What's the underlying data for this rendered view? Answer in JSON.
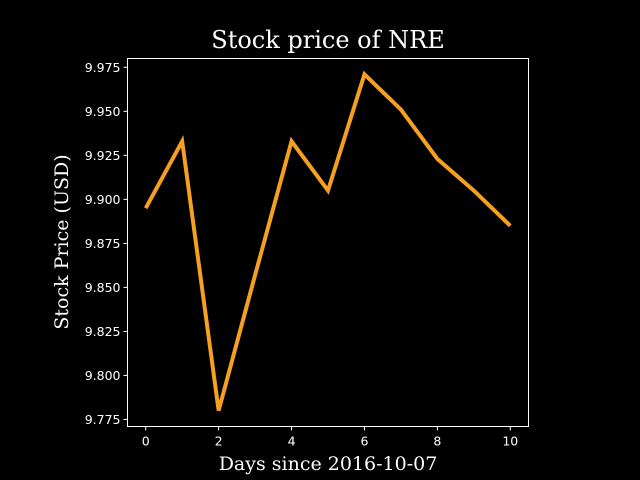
{
  "chart_data": {
    "type": "line",
    "title": "Stock price of NRE",
    "xlabel": "Days since 2016-10-07",
    "ylabel": "Stock Price (USD)",
    "x": [
      0,
      1,
      2,
      3,
      4,
      5,
      6,
      7,
      8,
      9,
      10
    ],
    "series": [
      {
        "values": [
          9.895,
          9.933,
          9.78,
          9.857,
          9.933,
          9.905,
          9.971,
          9.951,
          9.923,
          9.905,
          9.885
        ]
      }
    ],
    "xlim": [
      -0.5,
      10.5
    ],
    "ylim": [
      9.771,
      9.98
    ],
    "xticks": [
      "0",
      "2",
      "4",
      "6",
      "8",
      "10"
    ],
    "yticks": [
      "9.775",
      "9.800",
      "9.825",
      "9.850",
      "9.875",
      "9.900",
      "9.925",
      "9.950",
      "9.975"
    ],
    "grid": false,
    "legend": "none",
    "colors": {
      "background": "#000000",
      "axes": "#ffffff",
      "line": "#f5a020",
      "text": "#ffffff"
    }
  }
}
